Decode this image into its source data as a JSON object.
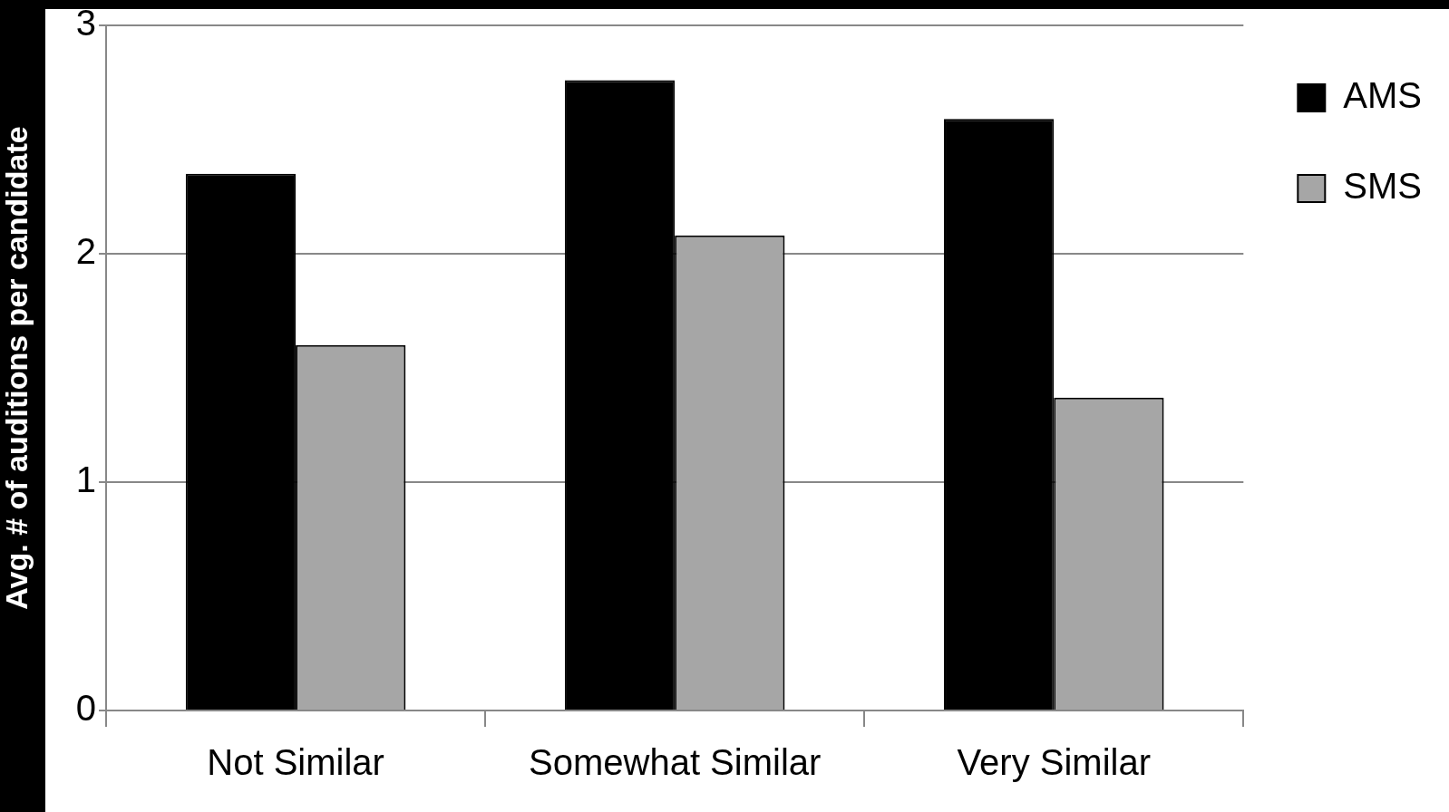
{
  "chart_data": {
    "type": "bar",
    "ylabel": "Avg. # of auditions per candidate",
    "categories": [
      "Not Similar",
      "Somewhat Similar",
      "Very Similar"
    ],
    "series": [
      {
        "name": "AMS",
        "color": "#000000",
        "values": [
          2.35,
          2.76,
          2.59
        ]
      },
      {
        "name": "SMS",
        "color": "#a6a6a6",
        "values": [
          1.6,
          2.08,
          1.37
        ]
      }
    ],
    "ylim": [
      0,
      3
    ],
    "yticks": [
      0,
      1,
      2,
      3
    ],
    "grid": "y",
    "legend": "top right"
  }
}
